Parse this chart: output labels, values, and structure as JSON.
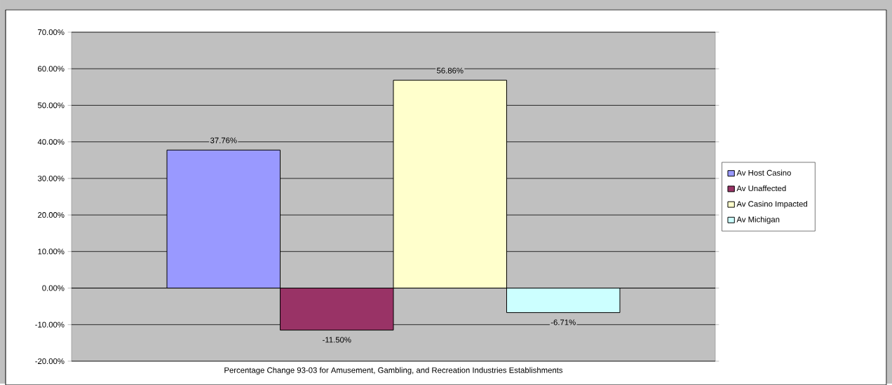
{
  "chart_data": {
    "type": "bar",
    "xlabel": "Percentage Change 93-03 for Amusement, Gambling, and Recreation Industries Establishments",
    "categories": [
      null
    ],
    "series": [
      {
        "name": "Av Host Casino",
        "color": "#9999ff",
        "values": [
          37.76
        ],
        "value_labels": [
          "37.76%"
        ]
      },
      {
        "name": "Av Unaffected",
        "color": "#993366",
        "values": [
          -11.5
        ],
        "value_labels": [
          "-11.50%"
        ]
      },
      {
        "name": "Av Casino Impacted",
        "color": "#ffffcc",
        "values": [
          56.86
        ],
        "value_labels": [
          "56.86%"
        ]
      },
      {
        "name": "Av Michigan",
        "color": "#ccffff",
        "values": [
          -6.71
        ],
        "value_labels": [
          "-6.71%"
        ]
      }
    ],
    "ylim": [
      -20,
      70
    ],
    "yticks": [
      {
        "value": -20,
        "label": "-20.00%"
      },
      {
        "value": -10,
        "label": "-10.00%"
      },
      {
        "value": 0,
        "label": "0.00%"
      },
      {
        "value": 10,
        "label": "10.00%"
      },
      {
        "value": 20,
        "label": "20.00%"
      },
      {
        "value": 30,
        "label": "30.00%"
      },
      {
        "value": 40,
        "label": "40.00%"
      },
      {
        "value": 50,
        "label": "50.00%"
      },
      {
        "value": 60,
        "label": "60.00%"
      },
      {
        "value": 70,
        "label": "70.00%"
      }
    ],
    "grid": "y",
    "legend": "right"
  }
}
